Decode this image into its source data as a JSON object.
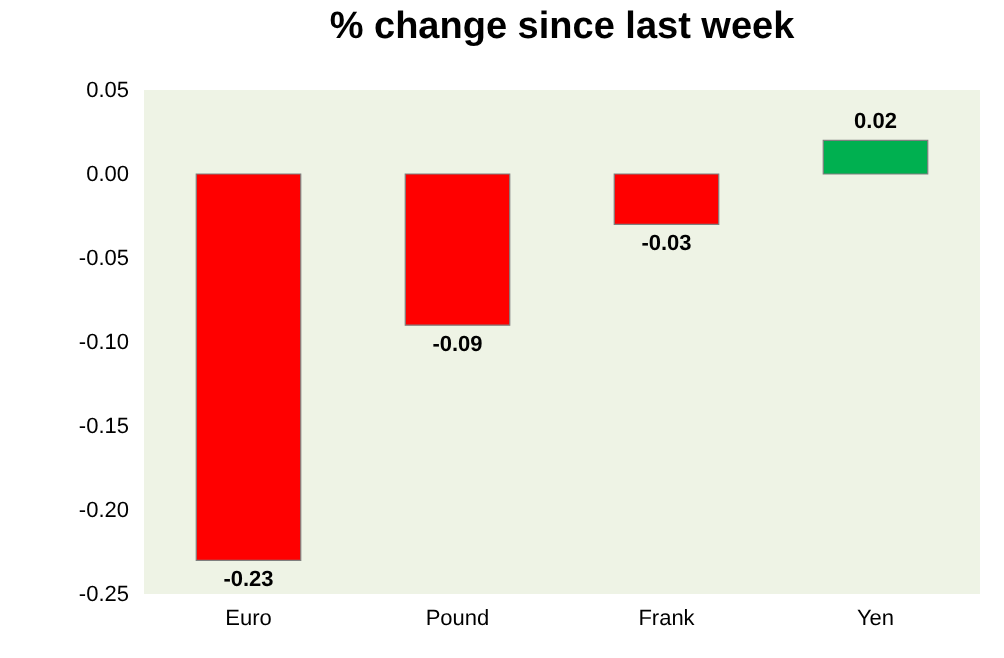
{
  "chart_data": {
    "type": "bar",
    "title": "% change since last week",
    "categories": [
      "Euro",
      "Pound",
      "Frank",
      "Yen"
    ],
    "values": [
      -0.23,
      -0.09,
      -0.03,
      0.02
    ],
    "colors": [
      "#ff0000",
      "#ff0000",
      "#ff0000",
      "#00b050"
    ],
    "ylim": [
      -0.25,
      0.05
    ],
    "yticks": [
      {
        "value": -0.25,
        "label": "-0.25"
      },
      {
        "value": -0.2,
        "label": "-0.20"
      },
      {
        "value": -0.15,
        "label": "-0.15"
      },
      {
        "value": -0.1,
        "label": "-0.10"
      },
      {
        "value": -0.05,
        "label": "-0.05"
      },
      {
        "value": 0,
        "label": "0.00"
      },
      {
        "value": 0.05,
        "label": "0.05"
      }
    ],
    "data_labels": true,
    "grid": false
  }
}
